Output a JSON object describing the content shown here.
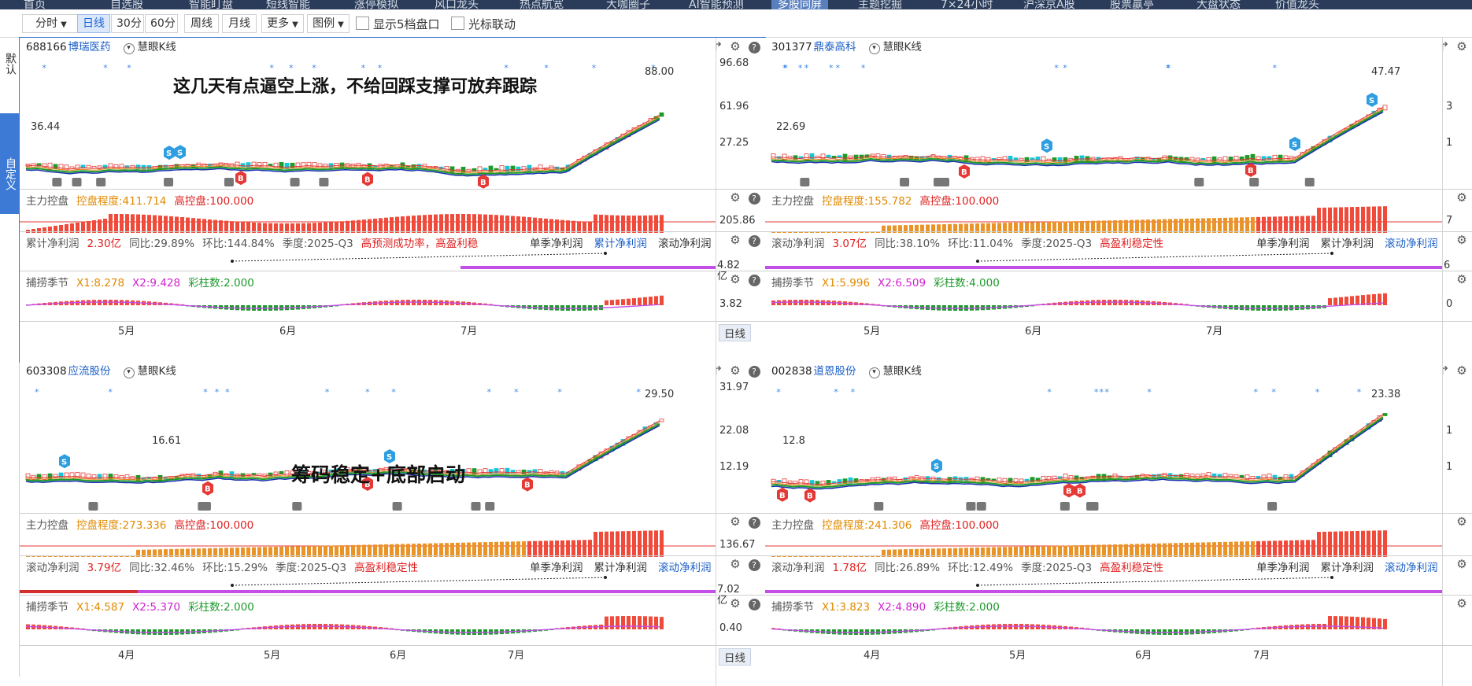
{
  "top_nav": [
    "首页",
    "自选股",
    "智能盯盘",
    "短线智能",
    "涨停模拟",
    "风口龙头",
    "热点航宽",
    "大咖圈子",
    "AI智能预测",
    "多股同屏",
    "主题挖掘",
    "7×24小时",
    "沪深京A股",
    "股票赢亭",
    "大盘状态",
    "价值龙头"
  ],
  "top_nav_active": "多股同屏",
  "toolbar": {
    "minute": "分时",
    "day": "日线",
    "m30": "30分",
    "m60": "60分",
    "week": "周线",
    "month": "月线",
    "more": "更多",
    "legend": "图例",
    "show5": "显示5档盘口",
    "cursor_link": "光标联动"
  },
  "sidebar": {
    "default_tab": "默认",
    "custom_tab": "自定义"
  },
  "panels": [
    {
      "code": "688166",
      "name": "博瑞医药",
      "chart_type": "慧眼K线",
      "annotation": "这几天有点逼空上涨，不给回踩支撑可放弃跟踪",
      "price_labels": [
        "96.68",
        "61.96",
        "27.25"
      ],
      "high_label": "88.00",
      "low_label": "36.44",
      "ctrl": {
        "k": "主力控盘",
        "a": "控盘程度:411.714",
        "b": "高控盘:100.000",
        "val": "205.86"
      },
      "profit": {
        "k": "累计净利润",
        "v": "2.30亿",
        "yoy": "同比:29.89%",
        "qoq": "环比:144.84%",
        "q": "季度:2025-Q3",
        "tag": "高预测成功率，高盈利稳",
        "t1": "单季净利润",
        "t2": "累计净利润",
        "t3": "滚动净利润",
        "active": "累计净利润",
        "val": "4.82",
        "unit": "亿"
      },
      "catch": {
        "k": "捕捞季节",
        "x1": "X1:8.278",
        "x2": "X2:9.428",
        "cz": "彩柱数:2.000",
        "val": "3.82"
      },
      "months": [
        "5月",
        "6月",
        "7月"
      ],
      "period": "日线"
    },
    {
      "code": "301377",
      "name": "鼎泰高科",
      "chart_type": "慧眼K线",
      "annotation": "",
      "price_labels": [
        "3",
        "1"
      ],
      "high_label": "47.47",
      "low_label": "22.69",
      "ctrl": {
        "k": "主力控盘",
        "a": "控盘程度:155.782",
        "b": "高控盘:100.000",
        "val": "7"
      },
      "profit": {
        "k": "滚动净利润",
        "v": "3.07亿",
        "yoy": "同比:38.10%",
        "qoq": "环比:11.04%",
        "q": "季度:2025-Q3",
        "tag": "高盈利稳定性",
        "t1": "单季净利润",
        "t2": "累计净利润",
        "t3": "滚动净利润",
        "active": "滚动净利润",
        "val": "6",
        "unit": ""
      },
      "catch": {
        "k": "捕捞季节",
        "x1": "X1:5.996",
        "x2": "X2:6.509",
        "cz": "彩柱数:4.000",
        "val": "0"
      },
      "months": [
        "5月",
        "6月",
        "7月"
      ],
      "period": ""
    },
    {
      "code": "603308",
      "name": "应流股份",
      "chart_type": "慧眼K线",
      "annotation": "筹码稳定+底部启动",
      "price_labels": [
        "31.97",
        "22.08",
        "12.19"
      ],
      "high_label": "29.50",
      "low_label": "16.61",
      "ctrl": {
        "k": "主力控盘",
        "a": "控盘程度:273.336",
        "b": "高控盘:100.000",
        "val": "136.67"
      },
      "profit": {
        "k": "滚动净利润",
        "v": "3.79亿",
        "yoy": "同比:32.46%",
        "qoq": "环比:15.29%",
        "q": "季度:2025-Q3",
        "tag": "高盈利稳定性",
        "t1": "单季净利润",
        "t2": "累计净利润",
        "t3": "滚动净利润",
        "active": "滚动净利润",
        "val": "7.02",
        "unit": "亿"
      },
      "catch": {
        "k": "捕捞季节",
        "x1": "X1:4.587",
        "x2": "X2:5.370",
        "cz": "彩柱数:2.000",
        "val": "0.40"
      },
      "months": [
        "4月",
        "5月",
        "6月",
        "7月"
      ],
      "period": "日线"
    },
    {
      "code": "002838",
      "name": "道恩股份",
      "chart_type": "慧眼K线",
      "annotation": "",
      "price_labels": [
        "1",
        "1"
      ],
      "high_label": "23.38",
      "low_label": "12.8",
      "ctrl": {
        "k": "主力控盘",
        "a": "控盘程度:241.306",
        "b": "高控盘:100.000",
        "val": ""
      },
      "profit": {
        "k": "滚动净利润",
        "v": "1.78亿",
        "yoy": "同比:26.89%",
        "qoq": "环比:12.49%",
        "q": "季度:2025-Q3",
        "tag": "高盈利稳定性",
        "t1": "单季净利润",
        "t2": "累计净利润",
        "t3": "滚动净利润",
        "active": "滚动净利润",
        "val": "",
        "unit": ""
      },
      "catch": {
        "k": "捕捞季节",
        "x1": "X1:3.823",
        "x2": "X2:4.890",
        "cz": "彩柱数:2.000",
        "val": ""
      },
      "months": [
        "4月",
        "5月",
        "6月",
        "7月"
      ],
      "period": ""
    }
  ],
  "colors": {
    "up": "#e53935",
    "down": "#1c9a2a",
    "accent": "#1b5fc6",
    "orange": "#e8891c",
    "magenta": "#c34fe8",
    "nav": "#2a3c5a"
  },
  "icons": [
    "share-icon",
    "settings-icon",
    "help-icon",
    "close-icon"
  ]
}
